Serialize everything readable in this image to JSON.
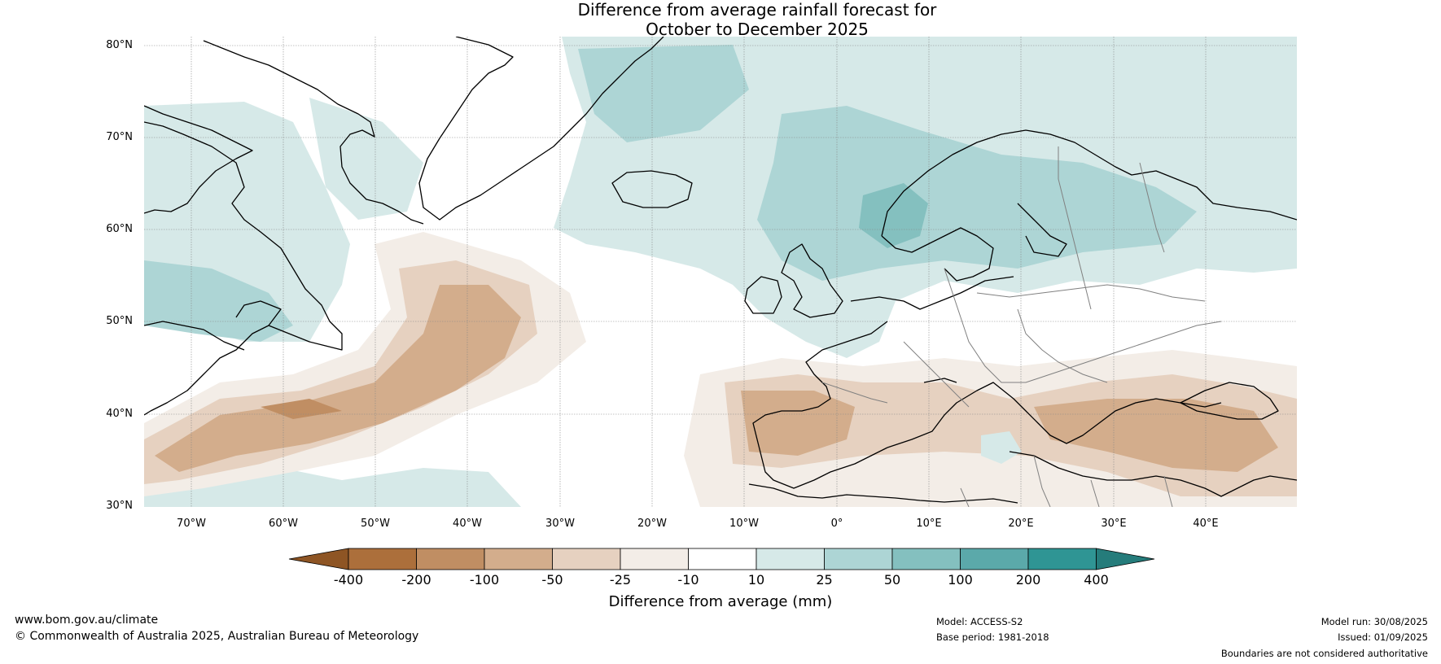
{
  "title_line1": "Difference from average rainfall forecast for",
  "title_line2": "October to December 2025",
  "lat_labels": [
    "80°N",
    "70°N",
    "60°N",
    "50°N",
    "40°N",
    "30°N"
  ],
  "lon_labels": [
    "70°W",
    "60°W",
    "50°W",
    "40°W",
    "30°W",
    "20°W",
    "10°W",
    "0°",
    "10°E",
    "20°E",
    "30°E",
    "40°E"
  ],
  "colorbar": {
    "title": "Difference from average (mm)",
    "tick_labels": [
      "-400",
      "-200",
      "-100",
      "-50",
      "-25",
      "-10",
      "10",
      "25",
      "50",
      "100",
      "200",
      "400"
    ],
    "colors": {
      "extend_low": "#8e5524",
      "c1": "#ac6f3b",
      "c2": "#c08e63",
      "c3": "#d3ad8c",
      "c4": "#e6d1c0",
      "c5": "#f3ede7",
      "c6": "#ffffff",
      "c7": "#d6e9e8",
      "c8": "#add5d5",
      "c9": "#84c0bf",
      "c10": "#5ba9aa",
      "c11": "#2f9594",
      "extend_high": "#257c7b"
    }
  },
  "footer": {
    "website": "www.bom.gov.au/climate",
    "copyright": "© Commonwealth of Australia 2025, Australian Bureau of Meteorology",
    "model": "Model: ACCESS-S2",
    "base_period": "Base period: 1981-2018",
    "model_run": "Model run: 30/08/2025",
    "issued": "Issued: 01/09/2025",
    "disclaimer": "Boundaries are not considered authoritative"
  }
}
